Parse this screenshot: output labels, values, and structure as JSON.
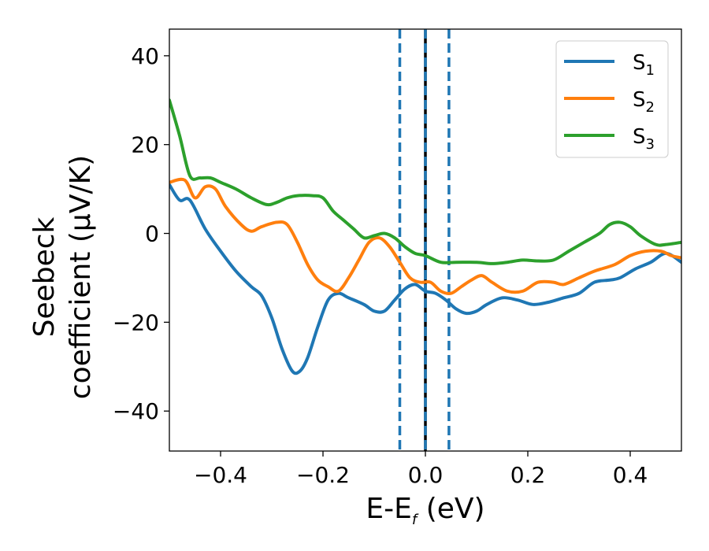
{
  "chart_data": {
    "type": "line",
    "xlabel": {
      "base": "E-E",
      "sub": "f",
      "unit": " (eV)"
    },
    "ylabel": {
      "line1": "Seebeck",
      "line2": "coefficient  (μV/K)"
    },
    "xlim": [
      -0.5,
      0.5
    ],
    "ylim": [
      -49,
      46
    ],
    "xticks": [
      {
        "value": -0.4,
        "label": "−0.4"
      },
      {
        "value": -0.2,
        "label": "−0.2"
      },
      {
        "value": 0.0,
        "label": "0.0"
      },
      {
        "value": 0.2,
        "label": "0.2"
      },
      {
        "value": 0.4,
        "label": "0.4"
      }
    ],
    "yticks": [
      {
        "value": -40,
        "label": "−40"
      },
      {
        "value": -20,
        "label": "−20"
      },
      {
        "value": 0,
        "label": "0"
      },
      {
        "value": 20,
        "label": "20"
      },
      {
        "value": 40,
        "label": "40"
      }
    ],
    "legend_position": "top-right",
    "grid": false,
    "vlines": [
      {
        "x": -0.05,
        "style": "dashed",
        "color": "#1f77b4"
      },
      {
        "x": 0.0,
        "style": "solid",
        "color": "#000000"
      },
      {
        "x": 0.0,
        "style": "dashed",
        "color": "#1f77b4"
      },
      {
        "x": 0.046,
        "style": "dashed",
        "color": "#1f77b4"
      }
    ],
    "series": [
      {
        "name": "S",
        "sub": "1",
        "color": "#1f77b4",
        "points": [
          [
            -0.5,
            11
          ],
          [
            -0.48,
            7.5
          ],
          [
            -0.46,
            7.5
          ],
          [
            -0.43,
            1
          ],
          [
            -0.4,
            -4
          ],
          [
            -0.37,
            -8.5
          ],
          [
            -0.34,
            -12
          ],
          [
            -0.32,
            -14
          ],
          [
            -0.3,
            -19
          ],
          [
            -0.28,
            -26
          ],
          [
            -0.26,
            -31
          ],
          [
            -0.245,
            -31
          ],
          [
            -0.23,
            -28
          ],
          [
            -0.21,
            -21
          ],
          [
            -0.19,
            -15
          ],
          [
            -0.17,
            -13.5
          ],
          [
            -0.15,
            -14.5
          ],
          [
            -0.12,
            -16
          ],
          [
            -0.1,
            -17.5
          ],
          [
            -0.08,
            -17.5
          ],
          [
            -0.06,
            -15
          ],
          [
            -0.04,
            -12.5
          ],
          [
            -0.02,
            -11.5
          ],
          [
            0.0,
            -13
          ],
          [
            0.02,
            -13.5
          ],
          [
            0.04,
            -15
          ],
          [
            0.06,
            -17
          ],
          [
            0.08,
            -18
          ],
          [
            0.1,
            -17.5
          ],
          [
            0.12,
            -16
          ],
          [
            0.15,
            -14.5
          ],
          [
            0.18,
            -15
          ],
          [
            0.21,
            -16
          ],
          [
            0.24,
            -15.5
          ],
          [
            0.27,
            -14.5
          ],
          [
            0.3,
            -13.5
          ],
          [
            0.33,
            -11
          ],
          [
            0.36,
            -10.5
          ],
          [
            0.38,
            -10
          ],
          [
            0.41,
            -8
          ],
          [
            0.44,
            -6.5
          ],
          [
            0.47,
            -4.5
          ],
          [
            0.5,
            -6.5
          ]
        ]
      },
      {
        "name": "S",
        "sub": "2",
        "color": "#ff7f0e",
        "points": [
          [
            -0.5,
            11.5
          ],
          [
            -0.47,
            12
          ],
          [
            -0.45,
            8
          ],
          [
            -0.43,
            10.5
          ],
          [
            -0.41,
            10
          ],
          [
            -0.39,
            6
          ],
          [
            -0.36,
            2
          ],
          [
            -0.34,
            0.5
          ],
          [
            -0.32,
            1.5
          ],
          [
            -0.29,
            2.5
          ],
          [
            -0.27,
            2
          ],
          [
            -0.25,
            -2
          ],
          [
            -0.23,
            -7
          ],
          [
            -0.21,
            -10.5
          ],
          [
            -0.19,
            -12
          ],
          [
            -0.17,
            -13
          ],
          [
            -0.15,
            -10
          ],
          [
            -0.13,
            -6
          ],
          [
            -0.11,
            -2
          ],
          [
            -0.09,
            -1
          ],
          [
            -0.07,
            -3
          ],
          [
            -0.05,
            -6.5
          ],
          [
            -0.03,
            -10
          ],
          [
            -0.01,
            -11
          ],
          [
            0.01,
            -11
          ],
          [
            0.03,
            -13
          ],
          [
            0.05,
            -13.5
          ],
          [
            0.07,
            -12
          ],
          [
            0.09,
            -10.5
          ],
          [
            0.11,
            -9.5
          ],
          [
            0.13,
            -11
          ],
          [
            0.16,
            -13
          ],
          [
            0.19,
            -13
          ],
          [
            0.22,
            -11
          ],
          [
            0.25,
            -11
          ],
          [
            0.27,
            -11.5
          ],
          [
            0.3,
            -10
          ],
          [
            0.33,
            -8.5
          ],
          [
            0.37,
            -7
          ],
          [
            0.4,
            -5
          ],
          [
            0.43,
            -4
          ],
          [
            0.46,
            -4
          ],
          [
            0.48,
            -5
          ],
          [
            0.5,
            -5.5
          ]
        ]
      },
      {
        "name": "S",
        "sub": "3",
        "color": "#2ca02c",
        "points": [
          [
            -0.5,
            30
          ],
          [
            -0.48,
            22
          ],
          [
            -0.46,
            13
          ],
          [
            -0.44,
            12.5
          ],
          [
            -0.42,
            12.5
          ],
          [
            -0.4,
            11.5
          ],
          [
            -0.37,
            10
          ],
          [
            -0.34,
            8
          ],
          [
            -0.31,
            6.5
          ],
          [
            -0.29,
            7
          ],
          [
            -0.27,
            8
          ],
          [
            -0.25,
            8.5
          ],
          [
            -0.22,
            8.5
          ],
          [
            -0.2,
            8
          ],
          [
            -0.18,
            5
          ],
          [
            -0.16,
            3
          ],
          [
            -0.14,
            1
          ],
          [
            -0.12,
            -1
          ],
          [
            -0.1,
            -0.5
          ],
          [
            -0.08,
            0
          ],
          [
            -0.06,
            -1
          ],
          [
            -0.04,
            -3
          ],
          [
            -0.02,
            -4.5
          ],
          [
            0.0,
            -5
          ],
          [
            0.03,
            -6.5
          ],
          [
            0.06,
            -6.5
          ],
          [
            0.1,
            -6.5
          ],
          [
            0.13,
            -6.8
          ],
          [
            0.16,
            -6.5
          ],
          [
            0.19,
            -6
          ],
          [
            0.22,
            -6.2
          ],
          [
            0.25,
            -6
          ],
          [
            0.28,
            -4
          ],
          [
            0.31,
            -2
          ],
          [
            0.34,
            0
          ],
          [
            0.36,
            2
          ],
          [
            0.38,
            2.5
          ],
          [
            0.4,
            1.5
          ],
          [
            0.42,
            -0.5
          ],
          [
            0.45,
            -2.5
          ],
          [
            0.47,
            -2.5
          ],
          [
            0.5,
            -2
          ]
        ]
      }
    ]
  }
}
